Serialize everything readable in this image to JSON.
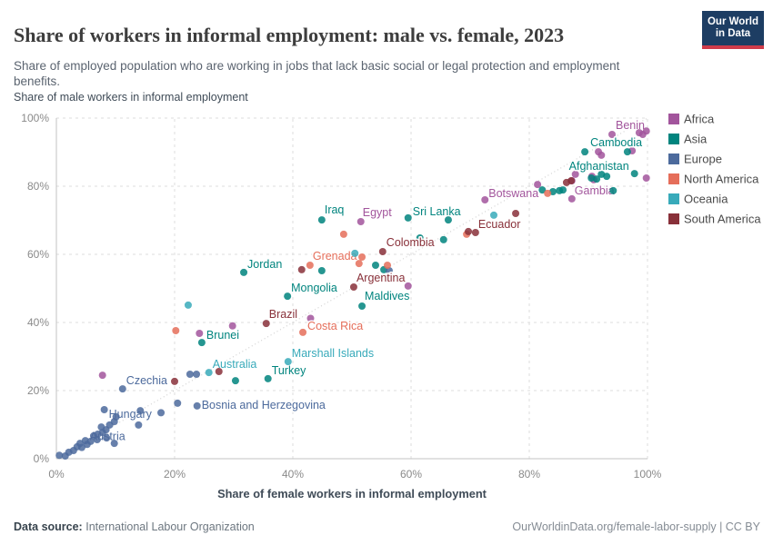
{
  "header": {
    "title": "Share of workers in informal employment: male vs. female, 2023",
    "subtitle": "Share of employed population who are working in jobs that lack basic social or legal protection and employment benefits.",
    "logo": {
      "line1": "Our World",
      "line2": "in Data",
      "bg_color": "#1d3d63",
      "accent_color": "#cf3b4a"
    }
  },
  "footer": {
    "source_label": "Data source:",
    "source_value": "International Labour Organization",
    "attribution": "OurWorldinData.org/female-labor-supply | CC BY"
  },
  "chart_data": {
    "type": "scatter",
    "title": "Share of workers in informal employment: male vs. female, 2023",
    "x_label": "Share of female workers in informal employment",
    "y_label": "Share of male workers in informal employment",
    "x_range": [
      0,
      100
    ],
    "y_range": [
      0,
      100
    ],
    "grid": true,
    "diagonal_reference_line": true,
    "legend_position": "right",
    "x_ticks": [
      {
        "value": 0,
        "label": "0%"
      },
      {
        "value": 20,
        "label": "20%"
      },
      {
        "value": 40,
        "label": "40%"
      },
      {
        "value": 60,
        "label": "60%"
      },
      {
        "value": 80,
        "label": "80%"
      },
      {
        "value": 100,
        "label": "100%"
      }
    ],
    "y_ticks": [
      {
        "value": 0,
        "label": "0%"
      },
      {
        "value": 20,
        "label": "20%"
      },
      {
        "value": 40,
        "label": "40%"
      },
      {
        "value": 60,
        "label": "60%"
      },
      {
        "value": 80,
        "label": "80%"
      },
      {
        "value": 100,
        "label": "100%"
      }
    ],
    "series": [
      {
        "name": "Africa",
        "color": "#a2559c",
        "points": [
          {
            "x": 7.8,
            "y": 24.5
          },
          {
            "x": 24.2,
            "y": 36.8
          },
          {
            "x": 29.8,
            "y": 39
          },
          {
            "x": 43,
            "y": 41.2
          },
          {
            "x": 51.5,
            "y": 69.6,
            "label": "Egypt",
            "dx": 2,
            "dy": -6
          },
          {
            "x": 59.5,
            "y": 50.7
          },
          {
            "x": 72.5,
            "y": 76,
            "label": "Botswana",
            "dx": 4,
            "dy": -3
          },
          {
            "x": 81.4,
            "y": 80.5
          },
          {
            "x": 87.2,
            "y": 81.6
          },
          {
            "x": 87.2,
            "y": 76.3,
            "label": "Gambia",
            "dx": 3,
            "dy": -5
          },
          {
            "x": 87.8,
            "y": 83.5
          },
          {
            "x": 90.6,
            "y": 82.9
          },
          {
            "x": 90.9,
            "y": 81.9
          },
          {
            "x": 91.7,
            "y": 90.1
          },
          {
            "x": 92.2,
            "y": 89.1
          },
          {
            "x": 94,
            "y": 95.2,
            "label": "Benin",
            "dx": 4,
            "dy": -6
          },
          {
            "x": 97.4,
            "y": 90.4
          },
          {
            "x": 98.6,
            "y": 95.7
          },
          {
            "x": 99.2,
            "y": 95.2
          },
          {
            "x": 99.8,
            "y": 96.2
          },
          {
            "x": 99.8,
            "y": 82.4
          }
        ]
      },
      {
        "name": "Asia",
        "color": "#00847e",
        "points": [
          {
            "x": 24.6,
            "y": 34.1,
            "label": "Brunei",
            "dx": 5,
            "dy": -4
          },
          {
            "x": 30.3,
            "y": 22.9
          },
          {
            "x": 31.7,
            "y": 54.7,
            "label": "Jordan",
            "dx": 4,
            "dy": -5
          },
          {
            "x": 35.8,
            "y": 23.5,
            "label": "Turkey",
            "dx": 4,
            "dy": -5
          },
          {
            "x": 39.1,
            "y": 47.7,
            "label": "Mongolia",
            "dx": 4,
            "dy": -5
          },
          {
            "x": 44.9,
            "y": 70.1,
            "label": "Iraq",
            "dx": 3,
            "dy": -7
          },
          {
            "x": 44.9,
            "y": 55.2
          },
          {
            "x": 51.7,
            "y": 44.8,
            "label": "Maldives",
            "dx": 3,
            "dy": -7
          },
          {
            "x": 54,
            "y": 56.8
          },
          {
            "x": 55.4,
            "y": 55.5
          },
          {
            "x": 59.5,
            "y": 70.7,
            "label": "Sri Lanka",
            "dx": 5,
            "dy": -3
          },
          {
            "x": 61.5,
            "y": 64.8
          },
          {
            "x": 65.5,
            "y": 64.3
          },
          {
            "x": 66.3,
            "y": 70.1
          },
          {
            "x": 82.2,
            "y": 78.9
          },
          {
            "x": 84,
            "y": 78.4
          },
          {
            "x": 85.1,
            "y": 78.7
          },
          {
            "x": 85.7,
            "y": 78.9
          },
          {
            "x": 89.4,
            "y": 90.1,
            "label": "Cambodia",
            "dx": 6,
            "dy": -6
          },
          {
            "x": 90.5,
            "y": 82.4
          },
          {
            "x": 91.4,
            "y": 82.1
          },
          {
            "x": 92.2,
            "y": 83.5
          },
          {
            "x": 93.1,
            "y": 82.9
          },
          {
            "x": 94.2,
            "y": 78.7
          },
          {
            "x": 96.6,
            "y": 90.1
          },
          {
            "x": 97.8,
            "y": 83.7,
            "label": "Afghanistan",
            "dx": -6,
            "dy": -4,
            "anchor": "end"
          }
        ]
      },
      {
        "name": "Europe",
        "color": "#4c6a9c",
        "points": [
          {
            "x": 0.5,
            "y": 1
          },
          {
            "x": 1.5,
            "y": 0.8
          },
          {
            "x": 2.1,
            "y": 1.9
          },
          {
            "x": 2.9,
            "y": 2.4
          },
          {
            "x": 3.5,
            "y": 3.5
          },
          {
            "x": 4,
            "y": 4.5
          },
          {
            "x": 4.3,
            "y": 3.3
          },
          {
            "x": 4.9,
            "y": 5.3
          },
          {
            "x": 5.2,
            "y": 4.2,
            "label": "Austria",
            "dx": 3,
            "dy": -5
          },
          {
            "x": 5.8,
            "y": 5.1
          },
          {
            "x": 6.3,
            "y": 6.7
          },
          {
            "x": 6.9,
            "y": 5.6
          },
          {
            "x": 7,
            "y": 7.2
          },
          {
            "x": 7.6,
            "y": 9.3
          },
          {
            "x": 7.8,
            "y": 7.7
          },
          {
            "x": 8.1,
            "y": 14.4,
            "label": "Hungary",
            "dx": 5,
            "dy": 9
          },
          {
            "x": 8.4,
            "y": 8.5
          },
          {
            "x": 8.5,
            "y": 6.1
          },
          {
            "x": 9,
            "y": 9.9
          },
          {
            "x": 9.8,
            "y": 4.5
          },
          {
            "x": 9.8,
            "y": 10.9
          },
          {
            "x": 10.1,
            "y": 12.3
          },
          {
            "x": 11.2,
            "y": 20.5,
            "label": "Czechia",
            "dx": 4,
            "dy": -5
          },
          {
            "x": 13.9,
            "y": 9.9
          },
          {
            "x": 14.2,
            "y": 14.1
          },
          {
            "x": 17.7,
            "y": 13.5
          },
          {
            "x": 20.5,
            "y": 16.3
          },
          {
            "x": 23.8,
            "y": 15.5,
            "label": "Bosnia and Herzegovina",
            "dx": 5,
            "dy": 3
          },
          {
            "x": 22.6,
            "y": 24.8
          },
          {
            "x": 23.7,
            "y": 24.8
          },
          {
            "x": 56.3,
            "y": 55.2
          }
        ]
      },
      {
        "name": "North America",
        "color": "#e56e5a",
        "points": [
          {
            "x": 20.2,
            "y": 37.6
          },
          {
            "x": 41.7,
            "y": 37.1,
            "label": "Costa Rica",
            "dx": 5,
            "dy": -3
          },
          {
            "x": 42.9,
            "y": 56.8,
            "label": "Grenada",
            "dx": 3,
            "dy": -6
          },
          {
            "x": 48.6,
            "y": 65.9
          },
          {
            "x": 51.2,
            "y": 57.3
          },
          {
            "x": 51.7,
            "y": 59.2
          },
          {
            "x": 56,
            "y": 56.8
          },
          {
            "x": 69.4,
            "y": 65.9
          },
          {
            "x": 83.1,
            "y": 77.9
          }
        ]
      },
      {
        "name": "Oceania",
        "color": "#38aaba",
        "points": [
          {
            "x": 22.3,
            "y": 45.1
          },
          {
            "x": 25.8,
            "y": 25.3,
            "label": "Australia",
            "dx": 4,
            "dy": -5
          },
          {
            "x": 39.2,
            "y": 28.5,
            "label": "Marshall Islands",
            "dx": 4,
            "dy": -5
          },
          {
            "x": 50.5,
            "y": 60.3
          },
          {
            "x": 74,
            "y": 71.5
          }
        ]
      },
      {
        "name": "South America",
        "color": "#883039",
        "points": [
          {
            "x": 20,
            "y": 22.7
          },
          {
            "x": 27.5,
            "y": 25.6
          },
          {
            "x": 35.5,
            "y": 39.7,
            "label": "Brazil",
            "dx": 3,
            "dy": -6
          },
          {
            "x": 41.5,
            "y": 55.5
          },
          {
            "x": 50.3,
            "y": 50.4,
            "label": "Argentina",
            "dx": 3,
            "dy": -6
          },
          {
            "x": 55.2,
            "y": 60.8,
            "label": "Colombia",
            "dx": 4,
            "dy": -6
          },
          {
            "x": 69.7,
            "y": 66.7
          },
          {
            "x": 70.9,
            "y": 66.4,
            "label": "Ecuador",
            "dx": 3,
            "dy": -5
          },
          {
            "x": 77.7,
            "y": 72
          },
          {
            "x": 86.3,
            "y": 81.1
          },
          {
            "x": 87.1,
            "y": 81.6
          }
        ]
      }
    ]
  }
}
